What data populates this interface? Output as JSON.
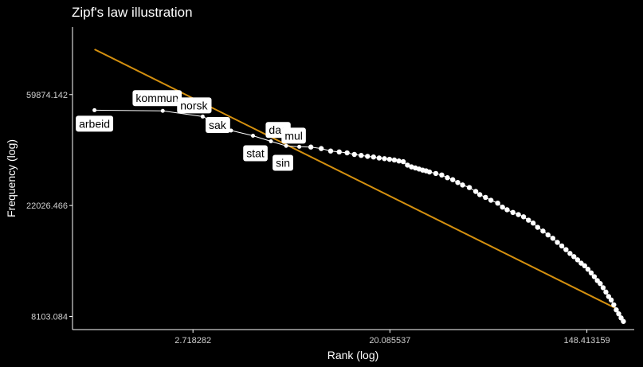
{
  "chart_data": {
    "type": "scatter",
    "title": "Zipf's law illustration",
    "xlabel": "Rank (log)",
    "ylabel": "Frequency (log)",
    "x_scale": "log",
    "y_scale": "log",
    "xlim": [
      0.8,
      240
    ],
    "ylim": [
      7200,
      110000
    ],
    "x_ticks": [
      {
        "value": 2.718282,
        "label": "2.718282"
      },
      {
        "value": 20.085537,
        "label": "20.085537"
      },
      {
        "value": 148.413159,
        "label": "148.413159"
      }
    ],
    "y_ticks": [
      {
        "value": 8103.084,
        "label": "8103.084"
      },
      {
        "value": 22026.466,
        "label": "22026.466"
      },
      {
        "value": 59874.142,
        "label": "59874.142"
      }
    ],
    "grid": false,
    "legend": "none",
    "colors": {
      "background": "#000000",
      "points": "#ffffff",
      "fit_line": "#d4900f",
      "axis": "#ffffff"
    },
    "fit_line": {
      "x": [
        1,
        200
      ],
      "y": [
        90000,
        8700
      ]
    },
    "labeled_points": [
      {
        "word": "arbeid",
        "rank": 1,
        "frequency": 52000
      },
      {
        "word": "kommun",
        "rank": 2,
        "frequency": 51700
      },
      {
        "word": "norsk",
        "rank": 3,
        "frequency": 49100
      },
      {
        "word": "sak",
        "rank": 4,
        "frequency": 43300
      },
      {
        "word": "stat",
        "rank": 5,
        "frequency": 41300
      },
      {
        "word": "sin",
        "rank": 6,
        "frequency": 39300
      },
      {
        "word": "dag",
        "rank": 7,
        "frequency": 37700
      },
      {
        "word": "mul",
        "rank": 8,
        "frequency": 37400
      }
    ],
    "points": [
      [
        9,
        37300
      ],
      [
        10,
        36800
      ],
      [
        11,
        36000
      ],
      [
        12,
        35700
      ],
      [
        13,
        35400
      ],
      [
        14,
        34900
      ],
      [
        15,
        34600
      ],
      [
        16,
        34300
      ],
      [
        17,
        34100
      ],
      [
        18,
        33800
      ],
      [
        19,
        33600
      ],
      [
        20,
        33400
      ],
      [
        21,
        33200
      ],
      [
        22,
        32900
      ],
      [
        23,
        32700
      ],
      [
        24,
        31700
      ],
      [
        25,
        31200
      ],
      [
        26,
        30900
      ],
      [
        27,
        30600
      ],
      [
        28,
        30300
      ],
      [
        29,
        30100
      ],
      [
        30,
        29800
      ],
      [
        32,
        29400
      ],
      [
        34,
        29000
      ],
      [
        36,
        28300
      ],
      [
        38,
        27800
      ],
      [
        40,
        27100
      ],
      [
        42,
        26500
      ],
      [
        45,
        25900
      ],
      [
        48,
        25000
      ],
      [
        50,
        24300
      ],
      [
        53,
        23700
      ],
      [
        56,
        23100
      ],
      [
        60,
        22500
      ],
      [
        63,
        21700
      ],
      [
        66,
        21200
      ],
      [
        70,
        20700
      ],
      [
        74,
        20300
      ],
      [
        78,
        19900
      ],
      [
        82,
        19300
      ],
      [
        86,
        18800
      ],
      [
        90,
        18100
      ],
      [
        95,
        17500
      ],
      [
        100,
        16900
      ],
      [
        105,
        16400
      ],
      [
        110,
        15800
      ],
      [
        115,
        15300
      ],
      [
        120,
        14800
      ],
      [
        125,
        14300
      ],
      [
        130,
        13900
      ],
      [
        135,
        13500
      ],
      [
        140,
        13100
      ],
      [
        145,
        12800
      ],
      [
        150,
        12400
      ],
      [
        155,
        12000
      ],
      [
        160,
        11600
      ],
      [
        165,
        11200
      ],
      [
        170,
        10900
      ],
      [
        175,
        10500
      ],
      [
        180,
        10100
      ],
      [
        185,
        9700
      ],
      [
        190,
        9400
      ],
      [
        195,
        9000
      ],
      [
        200,
        8600
      ],
      [
        205,
        8300
      ],
      [
        210,
        8000
      ],
      [
        215,
        7750
      ]
    ]
  }
}
